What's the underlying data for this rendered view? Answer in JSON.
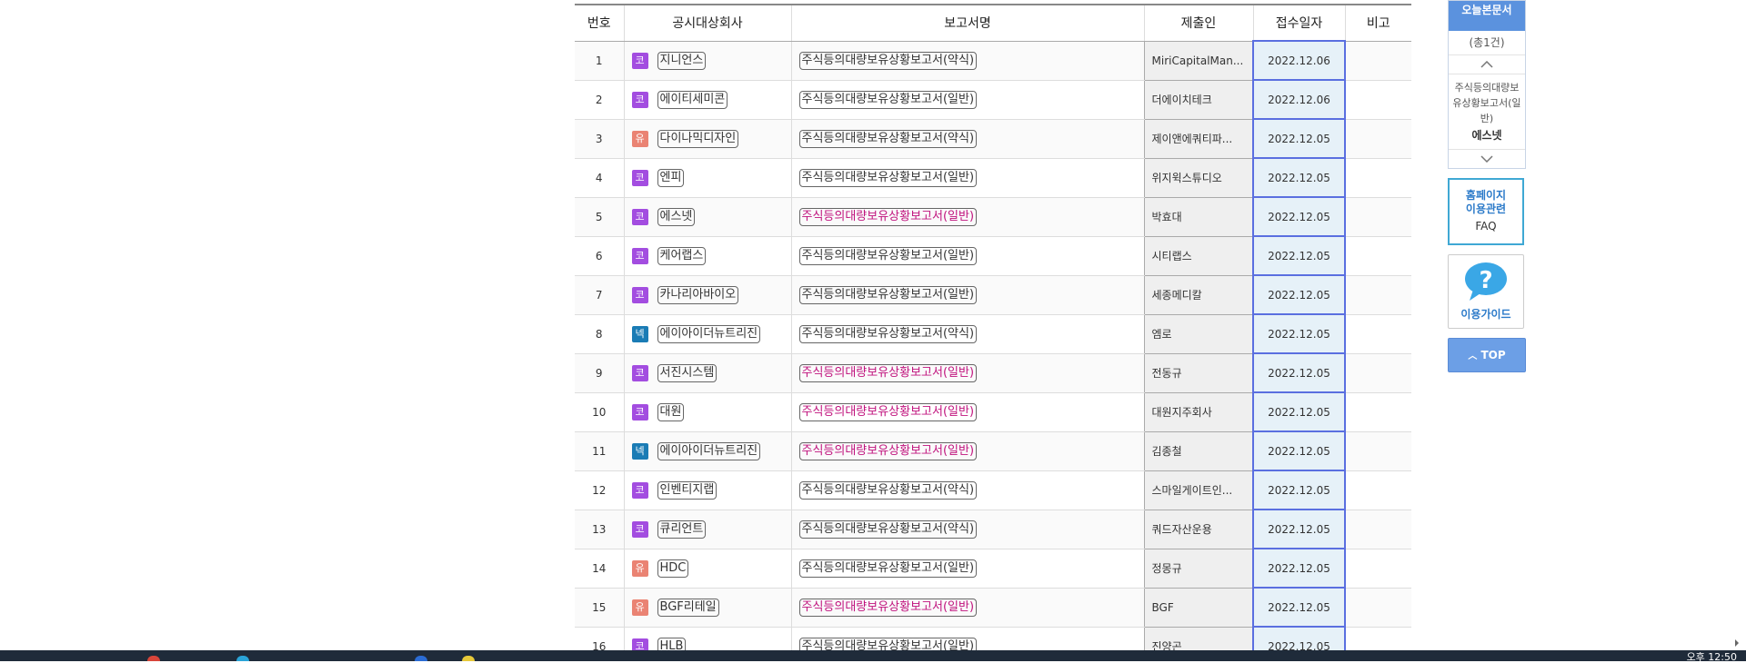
{
  "table": {
    "headers": [
      "번호",
      "공시대상회사",
      "보고서명",
      "제출인",
      "접수일자",
      "비고"
    ],
    "rows": [
      {
        "no": "1",
        "market": "코",
        "corp": "지니언스",
        "report": "주식등의대량보유상황보고서(약식)",
        "highlight": false,
        "submitter": "MiriCapitalMan...",
        "date": "2022.12.06"
      },
      {
        "no": "2",
        "market": "코",
        "corp": "에이티세미콘",
        "report": "주식등의대량보유상황보고서(일반)",
        "highlight": false,
        "submitter": "더에이치테크",
        "date": "2022.12.06"
      },
      {
        "no": "3",
        "market": "유",
        "corp": "다이나믹디자인",
        "report": "주식등의대량보유상황보고서(약식)",
        "highlight": false,
        "submitter": "제이앤에쿼티파...",
        "date": "2022.12.05"
      },
      {
        "no": "4",
        "market": "코",
        "corp": "엔피",
        "report": "주식등의대량보유상황보고서(일반)",
        "highlight": false,
        "submitter": "위지윅스튜디오",
        "date": "2022.12.05"
      },
      {
        "no": "5",
        "market": "코",
        "corp": "에스넷",
        "report": "주식등의대량보유상황보고서(일반)",
        "highlight": true,
        "submitter": "박효대",
        "date": "2022.12.05"
      },
      {
        "no": "6",
        "market": "코",
        "corp": "케어랩스",
        "report": "주식등의대량보유상황보고서(일반)",
        "highlight": false,
        "submitter": "시티랩스",
        "date": "2022.12.05"
      },
      {
        "no": "7",
        "market": "코",
        "corp": "카나리아바이오",
        "report": "주식등의대량보유상황보고서(일반)",
        "highlight": false,
        "submitter": "세종메디칼",
        "date": "2022.12.05"
      },
      {
        "no": "8",
        "market": "넥",
        "corp": "에이아이더뉴트리진",
        "report": "주식등의대량보유상황보고서(약식)",
        "highlight": false,
        "submitter": "엠로",
        "date": "2022.12.05"
      },
      {
        "no": "9",
        "market": "코",
        "corp": "서진시스템",
        "report": "주식등의대량보유상황보고서(일반)",
        "highlight": true,
        "submitter": "전동규",
        "date": "2022.12.05"
      },
      {
        "no": "10",
        "market": "코",
        "corp": "대원",
        "report": "주식등의대량보유상황보고서(일반)",
        "highlight": true,
        "submitter": "대원지주회사",
        "date": "2022.12.05"
      },
      {
        "no": "11",
        "market": "넥",
        "corp": "에이아이더뉴트리진",
        "report": "주식등의대량보유상황보고서(일반)",
        "highlight": true,
        "submitter": "김종철",
        "date": "2022.12.05"
      },
      {
        "no": "12",
        "market": "코",
        "corp": "인벤티지랩",
        "report": "주식등의대량보유상황보고서(약식)",
        "highlight": false,
        "submitter": "스마일게이트인...",
        "date": "2022.12.05"
      },
      {
        "no": "13",
        "market": "코",
        "corp": "큐리언트",
        "report": "주식등의대량보유상황보고서(약식)",
        "highlight": false,
        "submitter": "쿼드자산운용",
        "date": "2022.12.05"
      },
      {
        "no": "14",
        "market": "유",
        "corp": "HDC",
        "report": "주식등의대량보유상황보고서(일반)",
        "highlight": false,
        "submitter": "정몽규",
        "date": "2022.12.05"
      },
      {
        "no": "15",
        "market": "유",
        "corp": "BGF리테일",
        "report": "주식등의대량보유상황보고서(일반)",
        "highlight": true,
        "submitter": "BGF",
        "date": "2022.12.05"
      },
      {
        "no": "16",
        "market": "코",
        "corp": "HLB",
        "report": "주식등의대량보유상황보고서(일반)",
        "highlight": false,
        "submitter": "진양곤",
        "date": "2022.12.05"
      }
    ]
  },
  "side": {
    "today_title": "오늘본문서",
    "today_count": "(총1건)",
    "today_report": "주식등의대량보유상황보고서(일반)",
    "today_corp": "에스넷",
    "faq_line1": "홈페이지",
    "faq_line2": "이용관련",
    "faq_line3": "FAQ",
    "guide_label": "이용가이드",
    "top_label": "TOP"
  },
  "taskbar": {
    "clock": "오후 12:50"
  },
  "colors": {
    "kosdaq": "#a34de0",
    "kospi": "#ea8373",
    "konex": "#1a7cb5",
    "highlight_text": "#c0127d",
    "date_border": "#5a6fe0",
    "side_accent": "#5b92de"
  }
}
